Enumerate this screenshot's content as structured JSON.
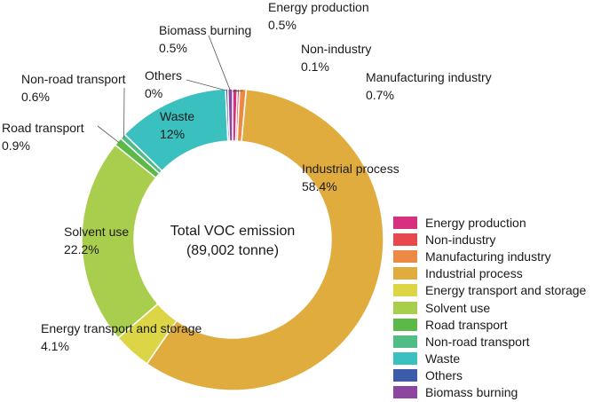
{
  "chart_data": {
    "type": "pie",
    "donut": true,
    "center_title": "Total VOC emission",
    "center_subtitle": "(89,002 tonne)",
    "legend_position": "bottom-right",
    "slices": [
      {
        "name": "Energy production",
        "value": 0.5,
        "label": "0.5%",
        "color": "#d6307f"
      },
      {
        "name": "Non-industry",
        "value": 0.1,
        "label": "0.1%",
        "color": "#e8474d"
      },
      {
        "name": "Manufacturing industry",
        "value": 0.7,
        "label": "0.7%",
        "color": "#ec8a45"
      },
      {
        "name": "Industrial process",
        "value": 58.4,
        "label": "58.4%",
        "color": "#e0ac3e"
      },
      {
        "name": "Energy transport and storage",
        "value": 4.1,
        "label": "4.1%",
        "color": "#dcd647"
      },
      {
        "name": "Solvent use",
        "value": 22.2,
        "label": "22.2%",
        "color": "#a9cd4c"
      },
      {
        "name": "Road transport",
        "value": 0.9,
        "label": "0.9%",
        "color": "#5cb847"
      },
      {
        "name": "Non-road transport",
        "value": 0.6,
        "label": "0.6%",
        "color": "#52bc87"
      },
      {
        "name": "Waste",
        "value": 12,
        "label": "12%",
        "color": "#3ac0bf"
      },
      {
        "name": "Others",
        "value": 0,
        "label": "0%",
        "color": "#3c5ba8"
      },
      {
        "name": "Biomass burning",
        "value": 0.5,
        "label": "0.5%",
        "color": "#8c46a0"
      }
    ]
  }
}
